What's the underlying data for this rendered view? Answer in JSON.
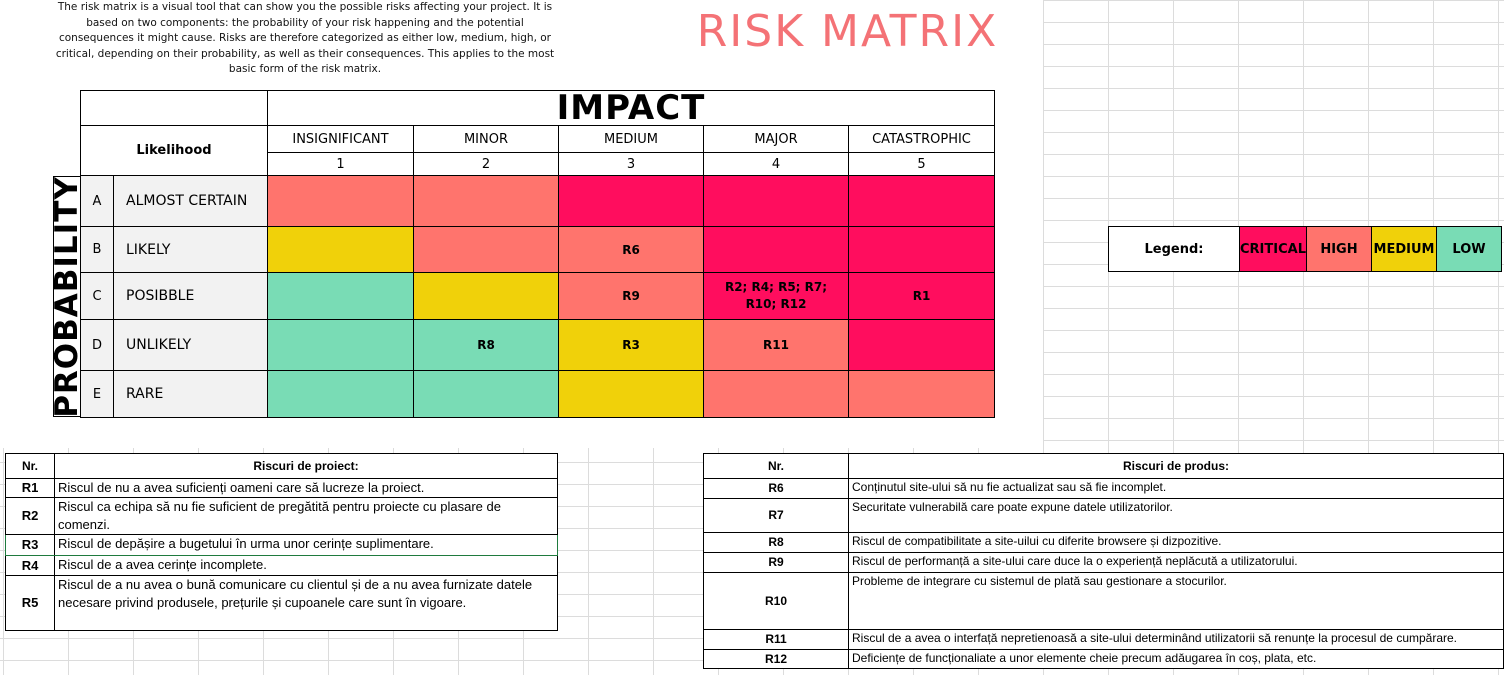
{
  "intro": "The risk matrix is a visual tool that can show you the possible risks affecting your project. It is based on two components: the probability of your risk happening and the potential consequences it might cause. Risks are therefore categorized as either low, medium, high, or critical, depending on their probability, as well as their consequences. This applies to the most basic form of the risk matrix.",
  "title": "RISK MATRIX",
  "matrix": {
    "impact_label": "IMPACT",
    "probability_label": "PROBABILITY",
    "likelihood_label": "Likelihood",
    "impacts": [
      {
        "name": "INSIGNIFICANT",
        "num": "1"
      },
      {
        "name": "MINOR",
        "num": "2"
      },
      {
        "name": "MEDIUM",
        "num": "3"
      },
      {
        "name": "MAJOR",
        "num": "4"
      },
      {
        "name": "CATASTROPHIC",
        "num": "5"
      }
    ],
    "rows": [
      {
        "letter": "A",
        "name": "ALMOST CERTAIN",
        "cells": [
          {
            "level": "HIGH",
            "text": ""
          },
          {
            "level": "HIGH",
            "text": ""
          },
          {
            "level": "CRITICAL",
            "text": ""
          },
          {
            "level": "CRITICAL",
            "text": ""
          },
          {
            "level": "CRITICAL",
            "text": ""
          }
        ]
      },
      {
        "letter": "B",
        "name": "LIKELY",
        "cells": [
          {
            "level": "MEDIUM",
            "text": ""
          },
          {
            "level": "HIGH",
            "text": ""
          },
          {
            "level": "HIGH",
            "text": "R6"
          },
          {
            "level": "CRITICAL",
            "text": ""
          },
          {
            "level": "CRITICAL",
            "text": ""
          }
        ]
      },
      {
        "letter": "C",
        "name": "POSIBBLE",
        "cells": [
          {
            "level": "LOW",
            "text": ""
          },
          {
            "level": "MEDIUM",
            "text": ""
          },
          {
            "level": "HIGH",
            "text": "R9"
          },
          {
            "level": "CRITICAL",
            "text": "R2; R4; R5; R7; R10; R12"
          },
          {
            "level": "CRITICAL",
            "text": "R1"
          }
        ]
      },
      {
        "letter": "D",
        "name": "UNLIKELY",
        "cells": [
          {
            "level": "LOW",
            "text": ""
          },
          {
            "level": "LOW",
            "text": "R8"
          },
          {
            "level": "MEDIUM",
            "text": "R3"
          },
          {
            "level": "HIGH",
            "text": "R11"
          },
          {
            "level": "CRITICAL",
            "text": ""
          }
        ]
      },
      {
        "letter": "E",
        "name": "RARE",
        "cells": [
          {
            "level": "LOW",
            "text": ""
          },
          {
            "level": "LOW",
            "text": ""
          },
          {
            "level": "MEDIUM",
            "text": ""
          },
          {
            "level": "HIGH",
            "text": ""
          },
          {
            "level": "HIGH",
            "text": ""
          }
        ]
      }
    ]
  },
  "legend": {
    "label": "Legend:",
    "items": [
      "CRITICAL",
      "HIGH",
      "MEDIUM",
      "LOW"
    ]
  },
  "colors": {
    "CRITICAL": "#ff0d5e",
    "HIGH": "#ff746d",
    "MEDIUM": "#f0d10a",
    "LOW": "#79dcb5",
    "title": "#f47276"
  },
  "project_risks": {
    "nr_header": "Nr.",
    "header": "Riscuri de proiect:",
    "rows": [
      {
        "id": "R1",
        "text": "Riscul de nu a avea suficienți oameni care să lucreze la proiect."
      },
      {
        "id": "R2",
        "text": "Riscul ca echipa să nu fie suficient de pregătită pentru proiecte cu plasare de comenzi."
      },
      {
        "id": "R3",
        "text": "Riscul de depășire a bugetului în urma unor cerințe suplimentare."
      },
      {
        "id": "R4",
        "text": "Riscul de a avea cerințe incomplete."
      },
      {
        "id": "R5",
        "text": "Riscul de a nu avea o bună  comunicare cu clientul și de a nu avea furnizate datele necesare privind produsele, prețurile și cupoanele care sunt în vigoare."
      }
    ]
  },
  "product_risks": {
    "nr_header": "Nr.",
    "header": "Riscuri de produs:",
    "rows": [
      {
        "id": "R6",
        "text": "Conținutul site-ului să nu fie actualizat sau să fie incomplet."
      },
      {
        "id": "R7",
        "text": "Securitate vulnerabilă care poate expune datele utilizatorilor."
      },
      {
        "id": "R8",
        "text": "Riscul de compatibilitate a site-uilui cu diferite browsere și dizpozitive."
      },
      {
        "id": "R9",
        "text": "Riscul de performanță a site-ului care duce la o experiență  neplăcută a utilizatorului."
      },
      {
        "id": "R10",
        "text": "Probleme de integrare cu sistemul de plată  sau gestionare a stocurilor."
      },
      {
        "id": "R11",
        "text": "Riscul de a avea o interfață  nepretienoasă a site-ului determinând utilizatorii să renunțe la procesul de cumpărare."
      },
      {
        "id": "R12",
        "text": "Deficiențe de funcționaliate a unor elemente cheie precum adăugarea în coș, plata, etc."
      }
    ]
  }
}
